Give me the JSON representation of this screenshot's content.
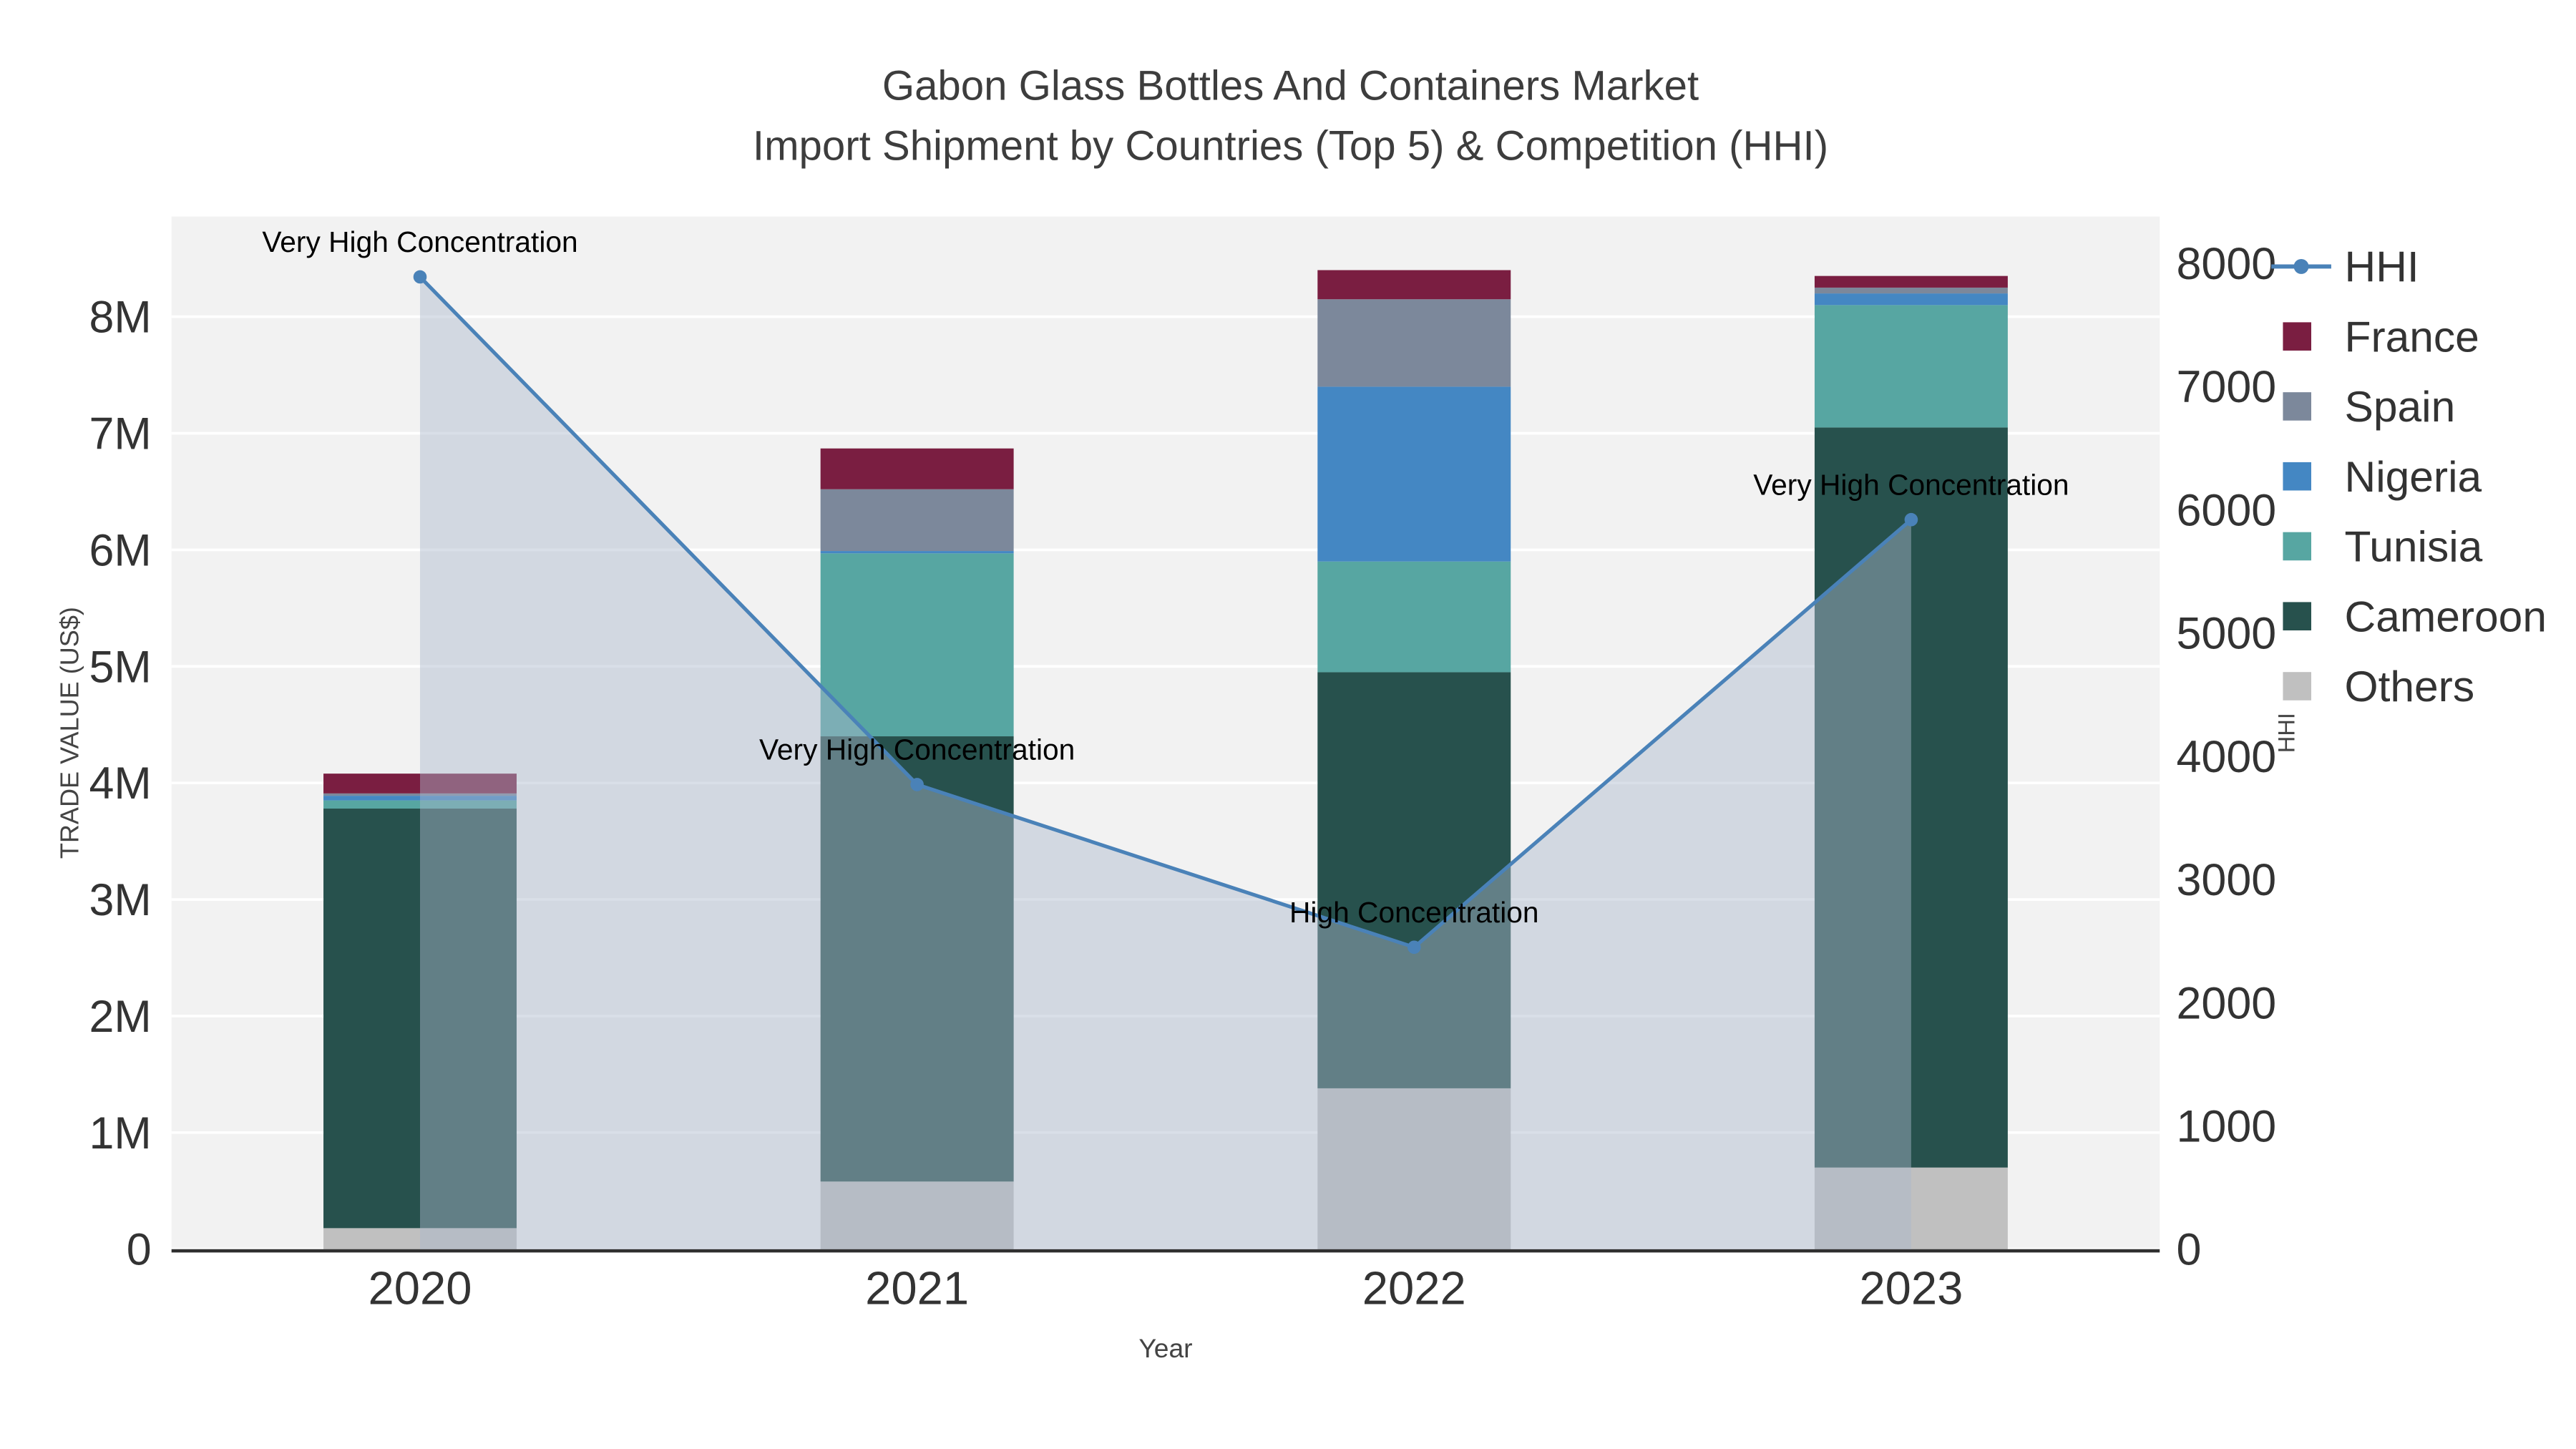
{
  "title": {
    "line1": "Gabon Glass Bottles And Containers Market",
    "line2": "Import Shipment by Countries (Top 5) & Competition (HHI)"
  },
  "chart_data": {
    "type": "composite",
    "subtype": "stacked-bar+line",
    "title": "Gabon Glass Bottles And Containers Market Import Shipment by Countries (Top 5) & Competition (HHI)",
    "categories": [
      "2020",
      "2021",
      "2022",
      "2023"
    ],
    "bar_series": [
      {
        "name": "Others",
        "color": "#c0c0c0",
        "values": [
          180000,
          580000,
          1380000,
          700000
        ]
      },
      {
        "name": "Cameroon",
        "color": "#27514d",
        "values": [
          3600000,
          3820000,
          3570000,
          6350000
        ]
      },
      {
        "name": "Tunisia",
        "color": "#57a6a2",
        "values": [
          70000,
          1570000,
          950000,
          1050000
        ]
      },
      {
        "name": "Nigeria",
        "color": "#4487c3",
        "values": [
          40000,
          20000,
          1500000,
          100000
        ]
      },
      {
        "name": "Spain",
        "color": "#7c889b",
        "values": [
          20000,
          530000,
          750000,
          50000
        ]
      },
      {
        "name": "France",
        "color": "#7a1e41",
        "values": [
          170000,
          350000,
          250000,
          100000
        ]
      }
    ],
    "line_series": {
      "name": "HHI",
      "color": "#4a82b8",
      "fill_color": "rgba(170,184,204,0.45)",
      "values": [
        7890,
        3770,
        2450,
        5920
      ],
      "annotations": [
        "Very High Concentration",
        "Very High Concentration",
        "High Concentration",
        "Very High Concentration"
      ]
    },
    "left_axis": {
      "label": "TRADE VALUE (US$)",
      "ticks": [
        "0",
        "1M",
        "2M",
        "3M",
        "4M",
        "5M",
        "6M",
        "7M",
        "8M"
      ],
      "tick_values": [
        0,
        1000000,
        2000000,
        3000000,
        4000000,
        5000000,
        6000000,
        7000000,
        8000000
      ],
      "max": 8860000
    },
    "right_axis": {
      "label": "HHI",
      "ticks": [
        "0",
        "1000",
        "2000",
        "3000",
        "4000",
        "5000",
        "6000",
        "7000",
        "8000"
      ],
      "tick_values": [
        0,
        1000,
        2000,
        3000,
        4000,
        5000,
        6000,
        7000,
        8000
      ],
      "max": 8380
    },
    "x_axis": {
      "label": "Year"
    },
    "legend": [
      "HHI",
      "France",
      "Spain",
      "Nigeria",
      "Tunisia",
      "Cameroon",
      "Others"
    ],
    "legend_position": "right",
    "grid": true
  }
}
